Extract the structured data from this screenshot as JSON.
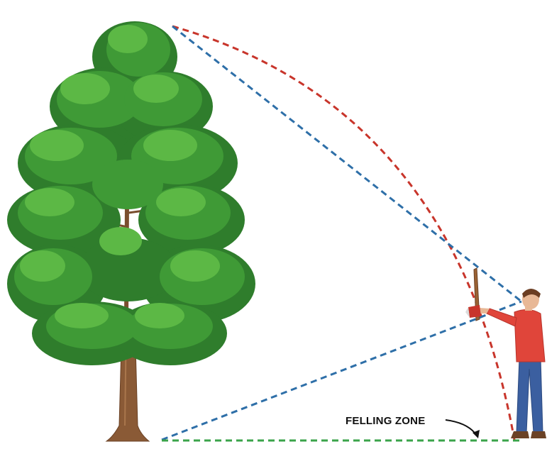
{
  "labels": {
    "felling_zone": "FELLING ZONE"
  },
  "colors": {
    "fall_arc": "#c8352b",
    "sight_line": "#2e6fa8",
    "ground_line": "#3aa34a",
    "foliage_dark": "#2f7d2c",
    "foliage_mid": "#3f9a36",
    "foliage_light": "#5cb845",
    "trunk": "#8a5a36",
    "shirt": "#e0453a",
    "pants": "#3b5fa0"
  },
  "icons": {
    "tree": "tree-icon",
    "person": "person-icon",
    "axe": "axe-icon",
    "arrow": "curved-arrow-icon"
  }
}
